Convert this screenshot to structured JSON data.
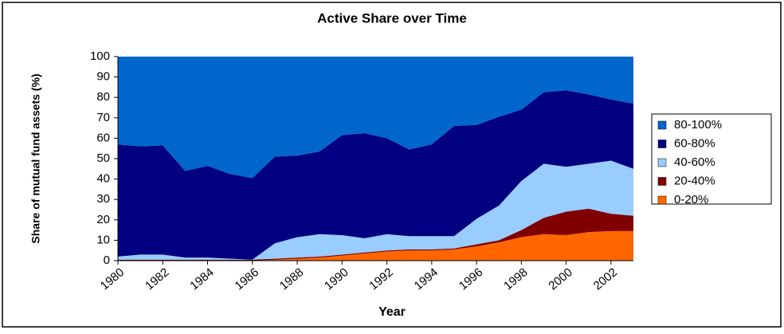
{
  "chart_data": {
    "type": "area",
    "stacked": true,
    "title": "Active Share over Time",
    "x_label": "Year",
    "y_label": "Share of mutual fund assets (%)",
    "x": [
      1980,
      1981,
      1982,
      1983,
      1984,
      1985,
      1986,
      1987,
      1988,
      1989,
      1990,
      1991,
      1992,
      1993,
      1994,
      1995,
      1996,
      1997,
      1998,
      1999,
      2000,
      2001,
      2002,
      2003
    ],
    "xlim": [
      1980,
      2003
    ],
    "xticks": [
      1980,
      1982,
      1984,
      1986,
      1988,
      1990,
      1992,
      1994,
      1996,
      1998,
      2000,
      2002
    ],
    "ylim": [
      0,
      100
    ],
    "yticks": [
      0,
      10,
      20,
      30,
      40,
      50,
      60,
      70,
      80,
      90,
      100
    ],
    "grid": false,
    "legend": "right",
    "series": [
      {
        "name": "80-100%",
        "color": "#0066cc",
        "values": [
          43,
          44,
          43.5,
          56,
          53.5,
          57.5,
          59.5,
          49,
          48.5,
          46.5,
          38.5,
          37.5,
          40,
          45.5,
          43,
          34,
          33.5,
          29.5,
          26,
          17.5,
          16.5,
          18.5,
          21,
          23
        ]
      },
      {
        "name": "60-80%",
        "color": "#000080",
        "values": [
          55,
          53,
          53.5,
          42.5,
          45,
          41.5,
          40,
          42.5,
          40,
          40.5,
          49,
          51.5,
          47,
          42.5,
          45,
          54,
          46,
          43.5,
          35,
          35,
          37.5,
          34,
          30,
          32
        ]
      },
      {
        "name": "40-60%",
        "color": "#99ccff",
        "values": [
          1.5,
          2.5,
          2.5,
          1,
          1,
          0.5,
          0,
          7.5,
          10,
          11,
          9.5,
          7,
          8,
          6.5,
          6.5,
          6,
          12.5,
          17,
          24,
          26.5,
          22,
          22,
          26,
          23
        ]
      },
      {
        "name": "20-40%",
        "color": "#800000",
        "values": [
          0.5,
          0.5,
          0.5,
          0.5,
          0.5,
          0.5,
          0.5,
          0.5,
          0.5,
          0.5,
          0.5,
          0.5,
          0.5,
          0.5,
          0.5,
          0.5,
          1,
          1,
          3.5,
          8,
          11.5,
          11.5,
          8.5,
          7.5
        ]
      },
      {
        "name": "0-20%",
        "color": "#ff6600",
        "values": [
          0,
          0,
          0,
          0,
          0,
          0,
          0,
          0.5,
          1,
          1.5,
          2.5,
          3.5,
          4.5,
          5,
          5,
          5.5,
          7,
          9,
          11.5,
          13,
          12.5,
          14,
          14.5,
          14.5
        ]
      }
    ]
  }
}
